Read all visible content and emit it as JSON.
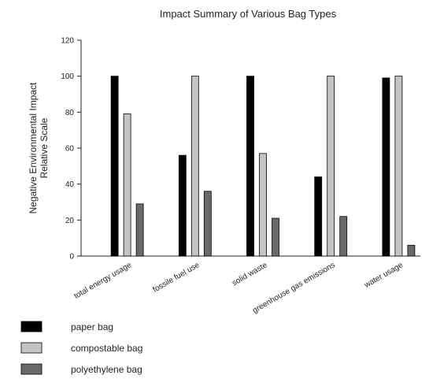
{
  "chart_data": {
    "type": "bar",
    "title": "Impact Summary of Various Bag Types",
    "ylabel_line1": "Negative Environmental Impact",
    "ylabel_line2": "Relative Scale",
    "xlabel": "",
    "ylim": [
      0,
      120
    ],
    "yticks": [
      0,
      20,
      40,
      60,
      80,
      100,
      120
    ],
    "grid": false,
    "legend_position": "bottom-left",
    "categories": [
      "total energy usage",
      "fossile fuel use",
      "solid waste",
      "greenhouse gas emissions",
      "water usage"
    ],
    "series": [
      {
        "name": "paper bag",
        "color": "#000000",
        "values": [
          100,
          56,
          100,
          44,
          99
        ]
      },
      {
        "name": "compostable bag",
        "color": "#c4c4c4",
        "values": [
          79,
          100,
          57,
          100,
          100
        ]
      },
      {
        "name": "polyethylene bag",
        "color": "#6a6a6a",
        "values": [
          29,
          36,
          21,
          22,
          6
        ]
      }
    ]
  }
}
